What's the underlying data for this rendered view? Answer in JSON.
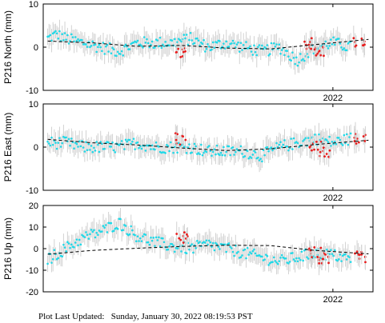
{
  "chart_data": [
    {
      "type": "scatter",
      "ylabel": "P216 North (mm)",
      "ylim": [
        -10,
        10
      ],
      "yticks": [
        10,
        0,
        -10
      ],
      "xticks": [
        "2022"
      ],
      "xrange_years": [
        2018.75,
        2022.45
      ],
      "series": [
        {
          "color": "#1fd9e8",
          "points": [
            [
              2018.8,
              2
            ],
            [
              2018.9,
              3
            ],
            [
              2019.0,
              2
            ],
            [
              2019.2,
              1
            ],
            [
              2019.4,
              0
            ],
            [
              2019.6,
              -1
            ],
            [
              2019.8,
              1
            ],
            [
              2020.0,
              1
            ],
            [
              2020.2,
              1
            ],
            [
              2020.4,
              2
            ],
            [
              2020.6,
              0
            ],
            [
              2020.8,
              1
            ],
            [
              2021.0,
              0
            ],
            [
              2021.2,
              -1
            ],
            [
              2021.4,
              0
            ],
            [
              2021.6,
              -3
            ],
            [
              2021.8,
              0
            ],
            [
              2022.0,
              1
            ],
            [
              2022.2,
              0
            ]
          ]
        },
        {
          "color": "#e81c1c",
          "points": [
            [
              2020.28,
              -1
            ],
            [
              2021.75,
              1
            ],
            [
              2021.85,
              -1
            ],
            [
              2022.3,
              1
            ]
          ]
        },
        {
          "color": "#000000",
          "style": "dashed",
          "points": [
            [
              2018.8,
              1.4
            ],
            [
              2019.3,
              1.0
            ],
            [
              2019.8,
              0.2
            ],
            [
              2020.3,
              0.4
            ],
            [
              2020.8,
              -0.2
            ],
            [
              2021.3,
              -0.4
            ],
            [
              2021.8,
              0.6
            ],
            [
              2022.4,
              1.8
            ]
          ]
        }
      ]
    },
    {
      "type": "scatter",
      "ylabel": "P216 East (mm)",
      "ylim": [
        -10,
        10
      ],
      "yticks": [
        10,
        0,
        -10
      ],
      "xticks": [
        "2022"
      ],
      "xrange_years": [
        2018.75,
        2022.45
      ],
      "series": [
        {
          "color": "#1fd9e8",
          "points": [
            [
              2018.8,
              1
            ],
            [
              2019.0,
              1
            ],
            [
              2019.2,
              0
            ],
            [
              2019.4,
              0
            ],
            [
              2019.6,
              0
            ],
            [
              2019.8,
              1
            ],
            [
              2020.0,
              0
            ],
            [
              2020.2,
              0
            ],
            [
              2020.4,
              0
            ],
            [
              2020.6,
              -1
            ],
            [
              2020.8,
              -1
            ],
            [
              2021.0,
              -1
            ],
            [
              2021.2,
              -2
            ],
            [
              2021.4,
              0
            ],
            [
              2021.6,
              1
            ],
            [
              2021.8,
              2
            ],
            [
              2022.0,
              1
            ],
            [
              2022.2,
              2
            ]
          ]
        },
        {
          "color": "#e81c1c",
          "points": [
            [
              2020.3,
              2
            ],
            [
              2021.8,
              0
            ],
            [
              2021.9,
              -1
            ],
            [
              2022.3,
              2
            ]
          ]
        },
        {
          "color": "#000000",
          "style": "dashed",
          "points": [
            [
              2018.8,
              1.8
            ],
            [
              2019.3,
              1.0
            ],
            [
              2019.8,
              0.5
            ],
            [
              2020.3,
              -0.2
            ],
            [
              2020.8,
              -0.8
            ],
            [
              2021.3,
              -0.4
            ],
            [
              2021.8,
              0.6
            ],
            [
              2022.4,
              1.6
            ]
          ]
        }
      ]
    },
    {
      "type": "scatter",
      "ylabel": "P216 Up (mm)",
      "ylim": [
        -20,
        20
      ],
      "yticks": [
        20,
        10,
        0,
        -10,
        -20
      ],
      "xticks": [
        "2022"
      ],
      "xrange_years": [
        2018.75,
        2022.45
      ],
      "series": [
        {
          "color": "#1fd9e8",
          "points": [
            [
              2018.8,
              -5
            ],
            [
              2019.0,
              0
            ],
            [
              2019.2,
              5
            ],
            [
              2019.4,
              8
            ],
            [
              2019.6,
              12
            ],
            [
              2019.8,
              6
            ],
            [
              2020.0,
              3
            ],
            [
              2020.2,
              1
            ],
            [
              2020.4,
              0
            ],
            [
              2020.6,
              2
            ],
            [
              2020.8,
              0
            ],
            [
              2021.0,
              -2
            ],
            [
              2021.2,
              -4
            ],
            [
              2021.4,
              -6
            ],
            [
              2021.6,
              -4
            ],
            [
              2021.8,
              -2
            ],
            [
              2022.0,
              -3
            ],
            [
              2022.2,
              -5
            ]
          ]
        },
        {
          "color": "#e81c1c",
          "points": [
            [
              2020.3,
              5
            ],
            [
              2021.8,
              -2
            ],
            [
              2021.9,
              -4
            ],
            [
              2022.3,
              -4
            ]
          ]
        },
        {
          "color": "#000000",
          "style": "dashed",
          "points": [
            [
              2018.8,
              -2.6
            ],
            [
              2019.3,
              -0.8
            ],
            [
              2019.8,
              0.2
            ],
            [
              2020.3,
              1.0
            ],
            [
              2020.8,
              1.6
            ],
            [
              2021.3,
              1.4
            ],
            [
              2021.8,
              -0.8
            ],
            [
              2022.4,
              -2.4
            ]
          ]
        }
      ]
    }
  ],
  "footer": {
    "label": "Plot Last Updated:",
    "value": "Sunday, January 30, 2022 08:19:53 PST"
  }
}
